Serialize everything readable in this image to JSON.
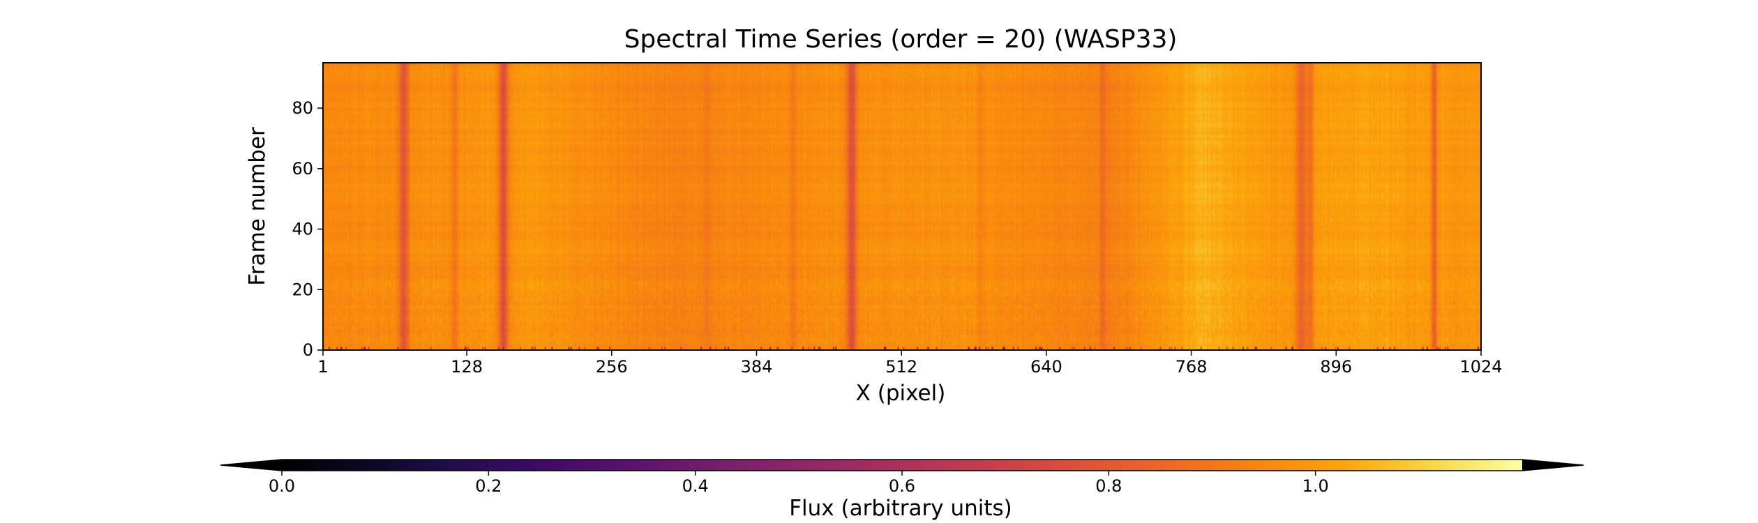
{
  "chart_data": {
    "type": "heatmap",
    "title": "Spectral Time Series (order = 20) (WASP33)",
    "xlabel": "X (pixel)",
    "ylabel": "Frame number",
    "xlim": [
      1,
      1024
    ],
    "ylim": [
      0,
      95
    ],
    "x_ticks": [
      1,
      128,
      256,
      384,
      512,
      640,
      768,
      896,
      1024
    ],
    "y_ticks": [
      0,
      20,
      40,
      60,
      80
    ],
    "colormap": "inferno",
    "colorbar": {
      "label": "Flux (arbitrary units)",
      "range": [
        0.0,
        1.2
      ],
      "ticks": [
        0.0,
        0.2,
        0.4,
        0.6,
        0.8,
        1.0
      ],
      "tick_labels": [
        "0.0",
        "0.2",
        "0.4",
        "0.6",
        "0.8",
        "1.0"
      ],
      "extend": "both",
      "orientation": "horizontal",
      "under_color": "#000004",
      "over_color": "#fcffa4"
    },
    "baseline_flux": 0.97,
    "absorption_lines": [
      {
        "x": 72,
        "depth": 0.17,
        "width": 3
      },
      {
        "x": 117,
        "depth": 0.08,
        "width": 2
      },
      {
        "x": 160,
        "depth": 0.22,
        "width": 3
      },
      {
        "x": 340,
        "depth": 0.04,
        "width": 2
      },
      {
        "x": 416,
        "depth": 0.06,
        "width": 2
      },
      {
        "x": 468,
        "depth": 0.2,
        "width": 3
      },
      {
        "x": 582,
        "depth": 0.04,
        "width": 2
      },
      {
        "x": 690,
        "depth": 0.07,
        "width": 2
      },
      {
        "x": 866,
        "depth": 0.16,
        "width": 4
      },
      {
        "x": 874,
        "depth": 0.1,
        "width": 2
      },
      {
        "x": 983,
        "depth": 0.16,
        "width": 2
      }
    ],
    "continuum_profile": [
      {
        "x": 1,
        "flux": 0.95
      },
      {
        "x": 60,
        "flux": 0.96
      },
      {
        "x": 190,
        "flux": 0.99
      },
      {
        "x": 300,
        "flux": 0.93
      },
      {
        "x": 420,
        "flux": 0.96
      },
      {
        "x": 560,
        "flux": 0.98
      },
      {
        "x": 620,
        "flux": 0.95
      },
      {
        "x": 700,
        "flux": 0.93
      },
      {
        "x": 780,
        "flux": 1.05
      },
      {
        "x": 840,
        "flux": 0.99
      },
      {
        "x": 930,
        "flux": 1.02
      },
      {
        "x": 1024,
        "flux": 0.98
      }
    ]
  }
}
